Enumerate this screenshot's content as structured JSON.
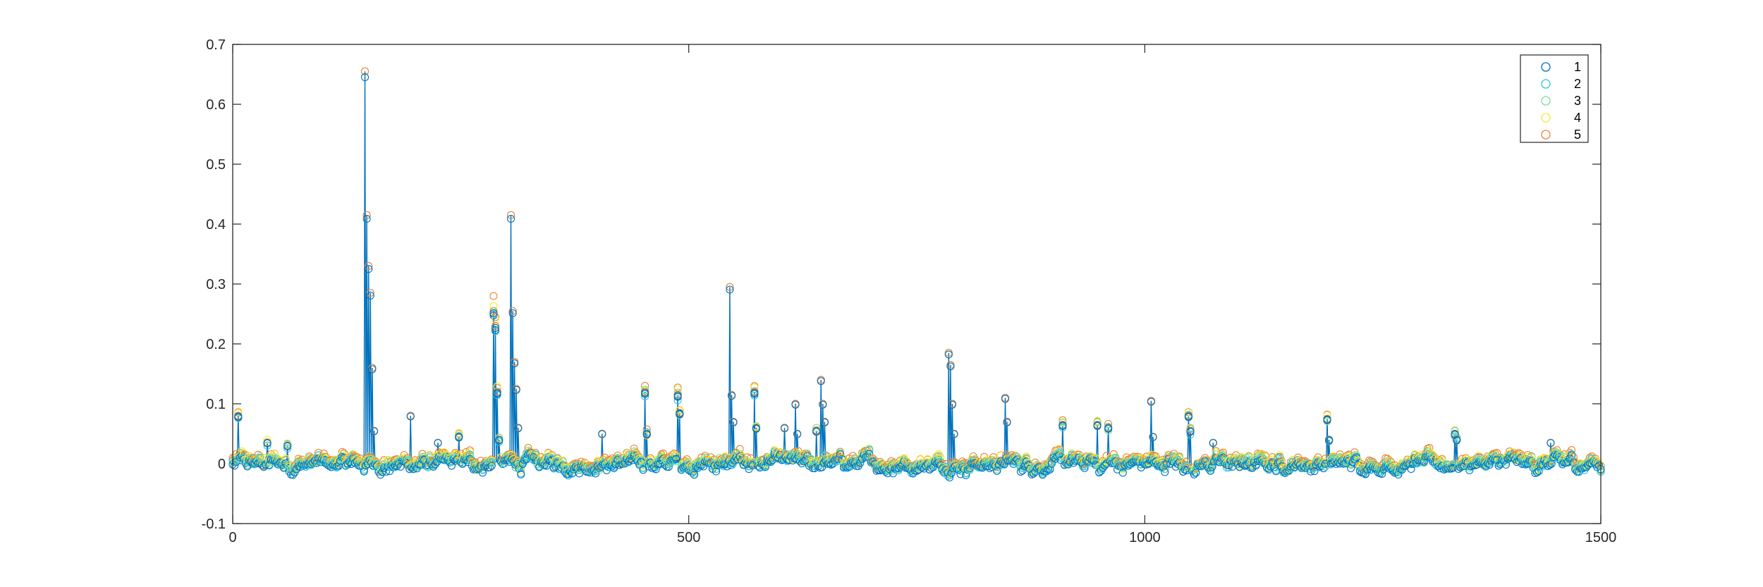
{
  "chart_data": {
    "type": "scatter",
    "title": "",
    "xlabel": "",
    "ylabel": "",
    "xlim": [
      0,
      1500
    ],
    "ylim": [
      -0.1,
      0.7
    ],
    "x_ticks": [
      0,
      500,
      1000,
      1500
    ],
    "y_ticks": [
      -0.1,
      0,
      0.1,
      0.2,
      0.3,
      0.4,
      0.5,
      0.6,
      0.7
    ],
    "x_tick_labels": [
      "0",
      "500",
      "1000",
      "1500"
    ],
    "y_tick_labels": [
      "-0.1",
      "0",
      "0.1",
      "0.2",
      "0.3",
      "0.4",
      "0.5",
      "0.6",
      "0.7"
    ],
    "legend_position": "top-right",
    "line_series": "1",
    "series": [
      {
        "name": "1",
        "color": "#0072BD"
      },
      {
        "name": "2",
        "color": "#2FC4E6"
      },
      {
        "name": "3",
        "color": "#7EE0A0"
      },
      {
        "name": "4",
        "color": "#F2EB3A"
      },
      {
        "name": "5",
        "color": "#E8833A"
      }
    ],
    "peaks": [
      {
        "x": 6,
        "y": 0.08
      },
      {
        "x": 38,
        "y": 0.035
      },
      {
        "x": 60,
        "y": 0.03
      },
      {
        "x": 145,
        "y": 0.655
      },
      {
        "x": 147,
        "y": 0.415
      },
      {
        "x": 149,
        "y": 0.33
      },
      {
        "x": 151,
        "y": 0.285
      },
      {
        "x": 153,
        "y": 0.16
      },
      {
        "x": 155,
        "y": 0.055
      },
      {
        "x": 195,
        "y": 0.08
      },
      {
        "x": 225,
        "y": 0.035
      },
      {
        "x": 248,
        "y": 0.045
      },
      {
        "x": 286,
        "y": 0.255
      },
      {
        "x": 288,
        "y": 0.23
      },
      {
        "x": 290,
        "y": 0.12
      },
      {
        "x": 292,
        "y": 0.04
      },
      {
        "x": 305,
        "y": 0.415
      },
      {
        "x": 307,
        "y": 0.255
      },
      {
        "x": 309,
        "y": 0.17
      },
      {
        "x": 311,
        "y": 0.125
      },
      {
        "x": 313,
        "y": 0.06
      },
      {
        "x": 405,
        "y": 0.05
      },
      {
        "x": 452,
        "y": 0.12
      },
      {
        "x": 454,
        "y": 0.05
      },
      {
        "x": 488,
        "y": 0.115
      },
      {
        "x": 490,
        "y": 0.085
      },
      {
        "x": 545,
        "y": 0.295
      },
      {
        "x": 547,
        "y": 0.115
      },
      {
        "x": 549,
        "y": 0.07
      },
      {
        "x": 572,
        "y": 0.12
      },
      {
        "x": 574,
        "y": 0.06
      },
      {
        "x": 605,
        "y": 0.06
      },
      {
        "x": 617,
        "y": 0.1
      },
      {
        "x": 619,
        "y": 0.05
      },
      {
        "x": 640,
        "y": 0.055
      },
      {
        "x": 645,
        "y": 0.14
      },
      {
        "x": 647,
        "y": 0.1
      },
      {
        "x": 649,
        "y": 0.07
      },
      {
        "x": 785,
        "y": 0.185
      },
      {
        "x": 787,
        "y": 0.165
      },
      {
        "x": 789,
        "y": 0.1
      },
      {
        "x": 791,
        "y": 0.05
      },
      {
        "x": 847,
        "y": 0.11
      },
      {
        "x": 849,
        "y": 0.07
      },
      {
        "x": 910,
        "y": 0.065
      },
      {
        "x": 948,
        "y": 0.065
      },
      {
        "x": 960,
        "y": 0.06
      },
      {
        "x": 1007,
        "y": 0.105
      },
      {
        "x": 1009,
        "y": 0.045
      },
      {
        "x": 1048,
        "y": 0.08
      },
      {
        "x": 1050,
        "y": 0.055
      },
      {
        "x": 1075,
        "y": 0.035
      },
      {
        "x": 1200,
        "y": 0.075
      },
      {
        "x": 1202,
        "y": 0.04
      },
      {
        "x": 1340,
        "y": 0.05
      },
      {
        "x": 1342,
        "y": 0.04
      },
      {
        "x": 1445,
        "y": 0.035
      }
    ]
  }
}
